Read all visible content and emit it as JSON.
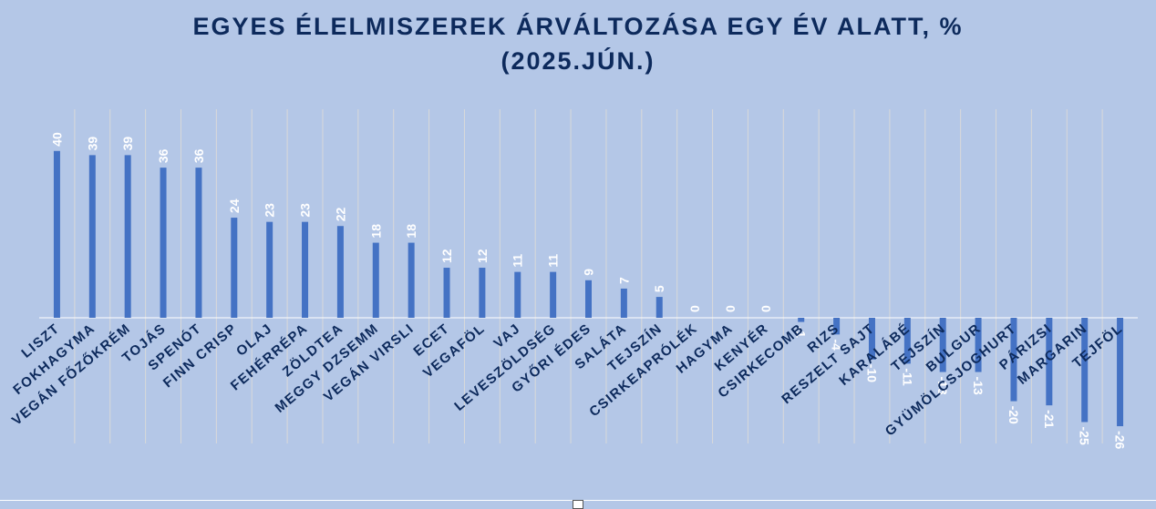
{
  "title_line1": "EGYES ÉLELMISZEREK ÁRVÁLTOZÁSA EGY ÉV ALATT, %",
  "title_line2": "(2025.JÚN.)",
  "chart_data": {
    "type": "bar",
    "title": "EGYES ÉLELMISZEREK ÁRVÁLTOZÁSA EGY ÉV ALATT, % (2025.JÚN.)",
    "categories": [
      "LISZT",
      "FOKHAGYMA",
      "VEGÁN FŐZŐKRÉM",
      "TOJÁS",
      "SPENÓT",
      "FINN CRISP",
      "OLAJ",
      "FEHÉRRÉPA",
      "ZÖLDTEA",
      "MEGGY DZSEMM",
      "VEGÁN VIRSLI",
      "ECET",
      "VEGAFÖL",
      "VAJ",
      "LEVESZÖLDSÉG",
      "GYŐRI ÉDES",
      "SALÁTA",
      "TEJSZÍN",
      "CSIRKEAPRÓLÉK",
      "HAGYMA",
      "KENYÉR",
      "CSIRKECOMB",
      "RIZS",
      "RESZELT SAJT",
      "KARALÁBÉ",
      "TEJSZÍN",
      "BULGUR",
      "GYÜMÖLCSJOGHURT",
      "PÁRIZSI",
      "MARGARIN",
      "TEJFÖL"
    ],
    "values": [
      40,
      39,
      39,
      36,
      36,
      24,
      23,
      23,
      22,
      18,
      18,
      12,
      12,
      11,
      11,
      9,
      7,
      5,
      0,
      0,
      0,
      -1,
      -4,
      -10,
      -11,
      -13,
      -13,
      -20,
      -21,
      -25,
      -26
    ],
    "bar_color": "#4472c4",
    "label_color": "#ffffff",
    "category_label_color": "#0d2a5c",
    "ylim": [
      -30,
      50
    ],
    "grid": "vertical",
    "legend": "none"
  }
}
